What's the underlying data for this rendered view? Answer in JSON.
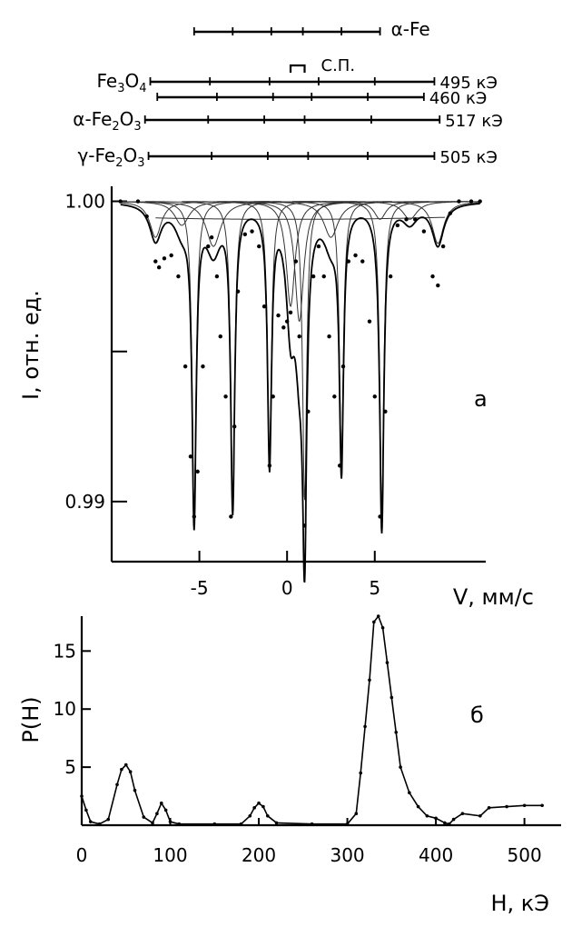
{
  "chart_data": [
    {
      "type": "line",
      "panel_label": "а",
      "xlabel": "V, мм/с",
      "ylabel": "I,  отн. ед.",
      "xlim": [
        -10,
        12
      ],
      "ylim": [
        0.988,
        1.0005
      ],
      "x_ticks": [
        -5,
        0,
        5
      ],
      "x_tick_labels": [
        "-5",
        "0",
        "5"
      ],
      "y_ticks": [
        0.99,
        0.995,
        1.0
      ],
      "y_tick_labels": [
        "0.99",
        "",
        "1.00"
      ],
      "spectrum_points": {
        "x": [
          -9.5,
          -8.5,
          -8.0,
          -7.5,
          -7.3,
          -7.0,
          -6.6,
          -6.2,
          -5.8,
          -5.5,
          -5.3,
          -5.1,
          -4.8,
          -4.5,
          -4.3,
          -4.0,
          -3.8,
          -3.5,
          -3.2,
          -3.0,
          -2.8,
          -2.4,
          -2.0,
          -1.6,
          -1.3,
          -1.0,
          -0.8,
          -0.5,
          -0.2,
          0.0,
          0.2,
          0.5,
          0.7,
          1.0,
          1.2,
          1.5,
          1.8,
          2.1,
          2.4,
          2.7,
          3.0,
          3.2,
          3.5,
          3.9,
          4.3,
          4.7,
          5.0,
          5.3,
          5.6,
          5.9,
          6.3,
          6.8,
          7.3,
          7.8,
          8.3,
          8.6,
          8.9,
          9.3,
          9.8,
          10.5,
          11.0
        ],
        "y": [
          1.0,
          1.0,
          0.9995,
          0.998,
          0.9978,
          0.9981,
          0.9982,
          0.9975,
          0.9945,
          0.9915,
          0.9895,
          0.991,
          0.9945,
          0.9985,
          0.9988,
          0.9975,
          0.9955,
          0.9935,
          0.9895,
          0.9925,
          0.997,
          0.9989,
          0.999,
          0.9985,
          0.9965,
          0.9912,
          0.9935,
          0.9962,
          0.9958,
          0.996,
          0.9963,
          0.998,
          0.9955,
          0.9892,
          0.993,
          0.9975,
          0.9985,
          0.9975,
          0.9955,
          0.9935,
          0.9912,
          0.9945,
          0.998,
          0.9982,
          0.998,
          0.996,
          0.9935,
          0.9895,
          0.993,
          0.9975,
          0.9992,
          0.9994,
          0.9994,
          0.999,
          0.9975,
          0.9972,
          0.9985,
          0.9996,
          1.0,
          1.0,
          1.0
        ]
      },
      "fit_curves": [
        {
          "center": -5.3,
          "width": 0.14,
          "depth": 0.0103
        },
        {
          "center": -3.1,
          "width": 0.14,
          "depth": 0.01
        },
        {
          "center": -1.0,
          "width": 0.14,
          "depth": 0.0085
        },
        {
          "center": 1.0,
          "width": 0.14,
          "depth": 0.01
        },
        {
          "center": 3.1,
          "width": 0.14,
          "depth": 0.0085
        },
        {
          "center": 5.4,
          "width": 0.14,
          "depth": 0.0103
        },
        {
          "center": 0.2,
          "width": 0.3,
          "depth": 0.0035
        },
        {
          "center": 0.7,
          "width": 0.3,
          "depth": 0.004
        },
        {
          "center": -7.5,
          "width": 0.4,
          "depth": 0.0012
        },
        {
          "center": -4.2,
          "width": 0.5,
          "depth": 0.0015
        },
        {
          "center": 2.5,
          "width": 0.5,
          "depth": 0.0012
        },
        {
          "center": 5.3,
          "width": 0.4,
          "depth": 0.0006
        },
        {
          "center": 8.6,
          "width": 0.4,
          "depth": 0.0014
        },
        {
          "center": -6.0,
          "width": 0.5,
          "depth": 0.0008
        },
        {
          "center": 7.0,
          "width": 0.5,
          "depth": 0.0006
        }
      ],
      "stick_diagrams": [
        {
          "label": "α-Fe",
          "suffix": "",
          "lines": [
            -5.3,
            -3.1,
            -0.9,
            0.9,
            3.1,
            5.3
          ]
        },
        {
          "label": "С.П.",
          "suffix": "",
          "lines": [
            0.2,
            1.0
          ]
        },
        {
          "label": "Fe3O4",
          "suffix": "495 кЭ",
          "lines": [
            -7.8,
            -4.4,
            -1.0,
            1.8,
            5.0,
            8.4
          ]
        },
        {
          "label": "",
          "suffix": "460 кЭ",
          "lines": [
            -7.4,
            -4.0,
            -0.8,
            1.4,
            4.6,
            7.8
          ]
        },
        {
          "label": "α-Fe2O3",
          "suffix": "517 кЭ",
          "lines": [
            -8.1,
            -4.5,
            -1.3,
            1.0,
            4.8,
            8.7
          ]
        },
        {
          "label": "γ-Fe2O3",
          "suffix": "505 кЭ",
          "lines": [
            -7.9,
            -4.3,
            -1.1,
            1.2,
            4.6,
            8.4
          ]
        }
      ]
    },
    {
      "type": "line",
      "panel_label": "б",
      "xlabel": "H, кЭ",
      "ylabel": "P(H)",
      "xlim": [
        0,
        525
      ],
      "ylim": [
        0,
        18
      ],
      "x_ticks": [
        0,
        100,
        200,
        300,
        400,
        500
      ],
      "x_tick_labels": [
        "0",
        "100",
        "200",
        "300",
        "400",
        "500"
      ],
      "y_ticks": [
        5,
        10,
        15
      ],
      "y_tick_labels": [
        "5",
        "10",
        "15"
      ],
      "x": [
        0,
        5,
        10,
        20,
        30,
        40,
        45,
        50,
        55,
        60,
        70,
        80,
        85,
        90,
        95,
        100,
        110,
        150,
        180,
        190,
        195,
        200,
        205,
        210,
        220,
        260,
        300,
        310,
        315,
        320,
        325,
        330,
        335,
        340,
        345,
        350,
        355,
        360,
        370,
        380,
        390,
        400,
        410,
        415,
        420,
        430,
        450,
        460,
        480,
        500,
        520
      ],
      "y": [
        2.5,
        1.3,
        0.3,
        0.1,
        0.5,
        3.5,
        4.8,
        5.2,
        4.6,
        3.0,
        0.7,
        0.2,
        1.0,
        1.9,
        1.3,
        0.3,
        0.1,
        0.1,
        0.1,
        0.8,
        1.5,
        1.9,
        1.6,
        0.8,
        0.2,
        0.1,
        0.1,
        1.0,
        4.5,
        8.5,
        12.5,
        17.5,
        18.0,
        17.0,
        14.0,
        11.0,
        8.0,
        5.0,
        2.8,
        1.6,
        0.8,
        0.6,
        0.2,
        0.1,
        0.5,
        1.0,
        0.8,
        1.5,
        1.6,
        1.7,
        1.7
      ]
    }
  ]
}
